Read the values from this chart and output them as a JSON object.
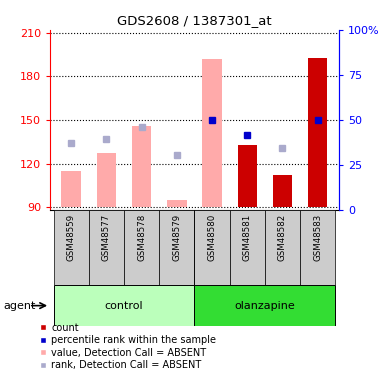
{
  "title": "GDS2608 / 1387301_at",
  "samples": [
    "GSM48559",
    "GSM48577",
    "GSM48578",
    "GSM48579",
    "GSM48580",
    "GSM48581",
    "GSM48582",
    "GSM48583"
  ],
  "ylim_left": [
    88,
    212
  ],
  "ylim_right": [
    0,
    100
  ],
  "yticks_left": [
    90,
    120,
    150,
    180,
    210
  ],
  "yticks_right": [
    0,
    25,
    50,
    75,
    100
  ],
  "ytick_labels_right": [
    "0",
    "25",
    "50",
    "75",
    "100%"
  ],
  "pink_bars": {
    "0": [
      90,
      115
    ],
    "1": [
      90,
      127
    ],
    "2": [
      90,
      146
    ],
    "3": [
      90,
      95
    ],
    "4": [
      90,
      192
    ]
  },
  "red_bars": {
    "5": [
      90,
      133
    ],
    "6": [
      90,
      112
    ],
    "7": [
      90,
      193
    ]
  },
  "blue_squares": {
    "4": 150,
    "5": 140,
    "7": 150
  },
  "light_blue_squares": {
    "0": 134,
    "1": 137,
    "2": 145,
    "3": 126,
    "6": 131
  },
  "color_pink_bar": "#ffaaaa",
  "color_red_bar": "#cc0000",
  "color_blue_sq": "#0000cc",
  "color_light_blue_sq": "#aaaacc",
  "color_green_light": "#bbffbb",
  "color_green_dark": "#33dd33",
  "bar_width": 0.55,
  "legend_items": [
    [
      "count",
      "#cc0000"
    ],
    [
      "percentile rank within the sample",
      "#0000cc"
    ],
    [
      "value, Detection Call = ABSENT",
      "#ffaaaa"
    ],
    [
      "rank, Detection Call = ABSENT",
      "#aaaacc"
    ]
  ]
}
